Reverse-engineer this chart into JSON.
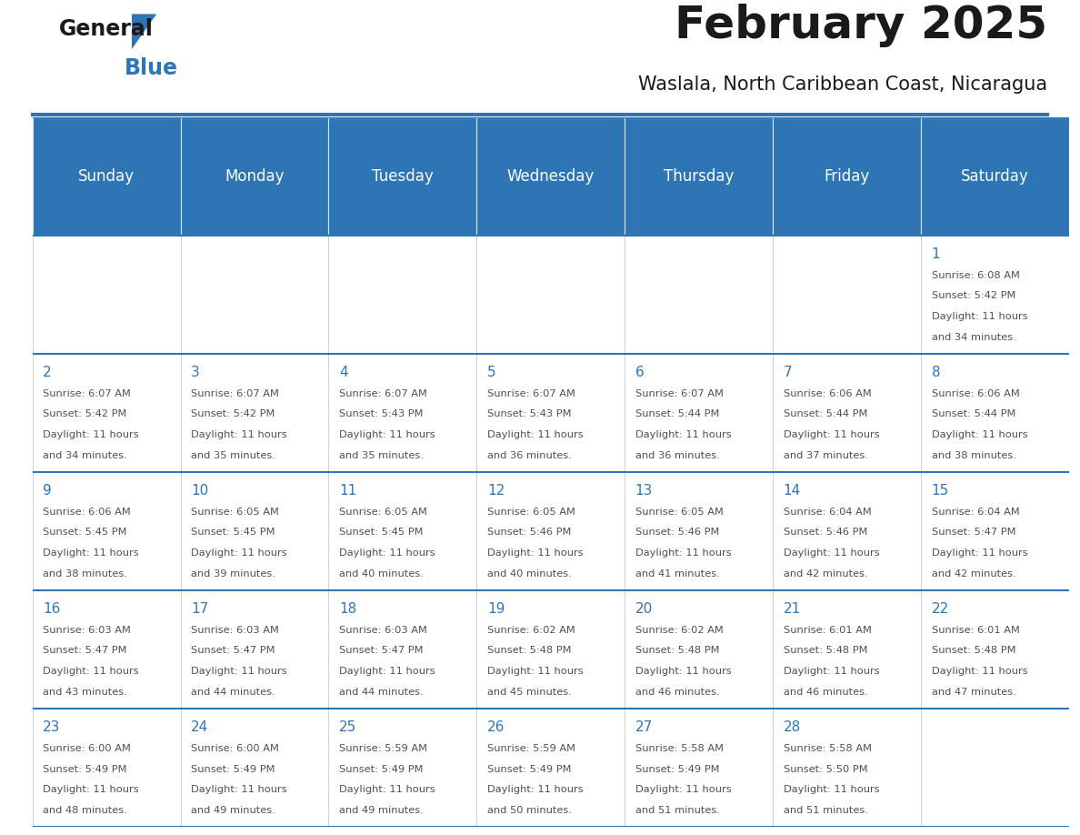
{
  "title": "February 2025",
  "subtitle": "Waslala, North Caribbean Coast, Nicaragua",
  "header_bg_color": "#2E75B6",
  "header_text_color": "#FFFFFF",
  "cell_bg_color": "#FFFFFF",
  "border_color": "#2E75B6",
  "day_names": [
    "Sunday",
    "Monday",
    "Tuesday",
    "Wednesday",
    "Thursday",
    "Friday",
    "Saturday"
  ],
  "day_num_color": "#2E75B6",
  "cell_text_color": "#505050",
  "days": [
    {
      "day": 1,
      "col": 6,
      "row": 0,
      "sunrise": "6:08 AM",
      "sunset": "5:42 PM",
      "daylight_hours": 11,
      "daylight_minutes": 34
    },
    {
      "day": 2,
      "col": 0,
      "row": 1,
      "sunrise": "6:07 AM",
      "sunset": "5:42 PM",
      "daylight_hours": 11,
      "daylight_minutes": 34
    },
    {
      "day": 3,
      "col": 1,
      "row": 1,
      "sunrise": "6:07 AM",
      "sunset": "5:42 PM",
      "daylight_hours": 11,
      "daylight_minutes": 35
    },
    {
      "day": 4,
      "col": 2,
      "row": 1,
      "sunrise": "6:07 AM",
      "sunset": "5:43 PM",
      "daylight_hours": 11,
      "daylight_minutes": 35
    },
    {
      "day": 5,
      "col": 3,
      "row": 1,
      "sunrise": "6:07 AM",
      "sunset": "5:43 PM",
      "daylight_hours": 11,
      "daylight_minutes": 36
    },
    {
      "day": 6,
      "col": 4,
      "row": 1,
      "sunrise": "6:07 AM",
      "sunset": "5:44 PM",
      "daylight_hours": 11,
      "daylight_minutes": 36
    },
    {
      "day": 7,
      "col": 5,
      "row": 1,
      "sunrise": "6:06 AM",
      "sunset": "5:44 PM",
      "daylight_hours": 11,
      "daylight_minutes": 37
    },
    {
      "day": 8,
      "col": 6,
      "row": 1,
      "sunrise": "6:06 AM",
      "sunset": "5:44 PM",
      "daylight_hours": 11,
      "daylight_minutes": 38
    },
    {
      "day": 9,
      "col": 0,
      "row": 2,
      "sunrise": "6:06 AM",
      "sunset": "5:45 PM",
      "daylight_hours": 11,
      "daylight_minutes": 38
    },
    {
      "day": 10,
      "col": 1,
      "row": 2,
      "sunrise": "6:05 AM",
      "sunset": "5:45 PM",
      "daylight_hours": 11,
      "daylight_minutes": 39
    },
    {
      "day": 11,
      "col": 2,
      "row": 2,
      "sunrise": "6:05 AM",
      "sunset": "5:45 PM",
      "daylight_hours": 11,
      "daylight_minutes": 40
    },
    {
      "day": 12,
      "col": 3,
      "row": 2,
      "sunrise": "6:05 AM",
      "sunset": "5:46 PM",
      "daylight_hours": 11,
      "daylight_minutes": 40
    },
    {
      "day": 13,
      "col": 4,
      "row": 2,
      "sunrise": "6:05 AM",
      "sunset": "5:46 PM",
      "daylight_hours": 11,
      "daylight_minutes": 41
    },
    {
      "day": 14,
      "col": 5,
      "row": 2,
      "sunrise": "6:04 AM",
      "sunset": "5:46 PM",
      "daylight_hours": 11,
      "daylight_minutes": 42
    },
    {
      "day": 15,
      "col": 6,
      "row": 2,
      "sunrise": "6:04 AM",
      "sunset": "5:47 PM",
      "daylight_hours": 11,
      "daylight_minutes": 42
    },
    {
      "day": 16,
      "col": 0,
      "row": 3,
      "sunrise": "6:03 AM",
      "sunset": "5:47 PM",
      "daylight_hours": 11,
      "daylight_minutes": 43
    },
    {
      "day": 17,
      "col": 1,
      "row": 3,
      "sunrise": "6:03 AM",
      "sunset": "5:47 PM",
      "daylight_hours": 11,
      "daylight_minutes": 44
    },
    {
      "day": 18,
      "col": 2,
      "row": 3,
      "sunrise": "6:03 AM",
      "sunset": "5:47 PM",
      "daylight_hours": 11,
      "daylight_minutes": 44
    },
    {
      "day": 19,
      "col": 3,
      "row": 3,
      "sunrise": "6:02 AM",
      "sunset": "5:48 PM",
      "daylight_hours": 11,
      "daylight_minutes": 45
    },
    {
      "day": 20,
      "col": 4,
      "row": 3,
      "sunrise": "6:02 AM",
      "sunset": "5:48 PM",
      "daylight_hours": 11,
      "daylight_minutes": 46
    },
    {
      "day": 21,
      "col": 5,
      "row": 3,
      "sunrise": "6:01 AM",
      "sunset": "5:48 PM",
      "daylight_hours": 11,
      "daylight_minutes": 46
    },
    {
      "day": 22,
      "col": 6,
      "row": 3,
      "sunrise": "6:01 AM",
      "sunset": "5:48 PM",
      "daylight_hours": 11,
      "daylight_minutes": 47
    },
    {
      "day": 23,
      "col": 0,
      "row": 4,
      "sunrise": "6:00 AM",
      "sunset": "5:49 PM",
      "daylight_hours": 11,
      "daylight_minutes": 48
    },
    {
      "day": 24,
      "col": 1,
      "row": 4,
      "sunrise": "6:00 AM",
      "sunset": "5:49 PM",
      "daylight_hours": 11,
      "daylight_minutes": 49
    },
    {
      "day": 25,
      "col": 2,
      "row": 4,
      "sunrise": "5:59 AM",
      "sunset": "5:49 PM",
      "daylight_hours": 11,
      "daylight_minutes": 49
    },
    {
      "day": 26,
      "col": 3,
      "row": 4,
      "sunrise": "5:59 AM",
      "sunset": "5:49 PM",
      "daylight_hours": 11,
      "daylight_minutes": 50
    },
    {
      "day": 27,
      "col": 4,
      "row": 4,
      "sunrise": "5:58 AM",
      "sunset": "5:49 PM",
      "daylight_hours": 11,
      "daylight_minutes": 51
    },
    {
      "day": 28,
      "col": 5,
      "row": 4,
      "sunrise": "5:58 AM",
      "sunset": "5:50 PM",
      "daylight_hours": 11,
      "daylight_minutes": 51
    }
  ],
  "num_rows": 5,
  "num_cols": 7,
  "logo_triangle_color": "#2E75B6",
  "fig_width": 11.88,
  "fig_height": 9.18,
  "dpi": 100
}
